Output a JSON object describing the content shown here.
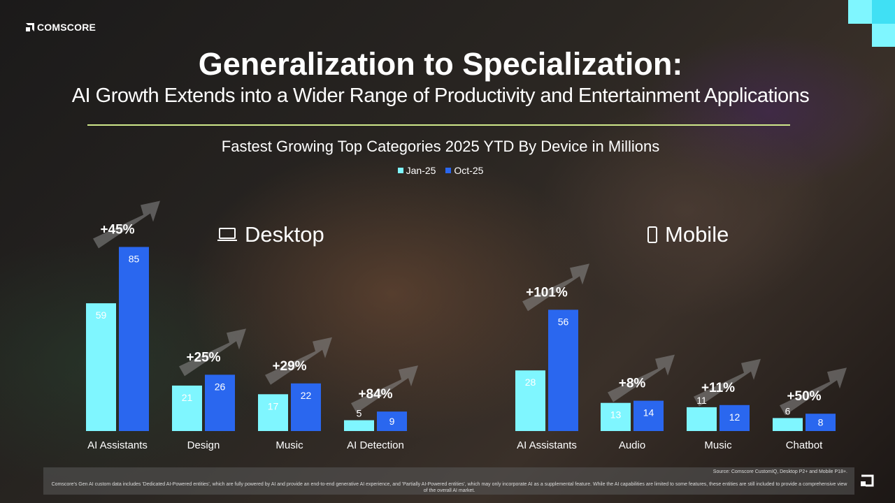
{
  "brand": {
    "name": "COMSCORE",
    "accent_light": "#7ff6ff",
    "accent_mid": "#40e0f4"
  },
  "title": "Generalization to Specialization:",
  "subtitle": "AI Growth Extends into a Wider Range of Productivity and Entertainment Applications",
  "sections": {
    "desktop": "Desktop",
    "mobile": "Mobile"
  },
  "chart_data": {
    "type": "bar",
    "title": "Fastest Growing Top Categories 2025 YTD By Device in Millions",
    "legend": [
      "Jan-25",
      "Oct-25"
    ],
    "series_colors": [
      "#7ff6ff",
      "#2a67ef"
    ],
    "groups": [
      {
        "device": "Desktop",
        "category": "AI Assistants",
        "jan": 59,
        "oct": 85,
        "growth": "+45%"
      },
      {
        "device": "Desktop",
        "category": "Design",
        "jan": 21,
        "oct": 26,
        "growth": "+25%"
      },
      {
        "device": "Desktop",
        "category": "Music",
        "jan": 17,
        "oct": 22,
        "growth": "+29%"
      },
      {
        "device": "Desktop",
        "category": "AI Detection",
        "jan": 5,
        "oct": 9,
        "growth": "+84%"
      },
      {
        "device": "Mobile",
        "category": "AI Assistants",
        "jan": 28,
        "oct": 56,
        "growth": "+101%"
      },
      {
        "device": "Mobile",
        "category": "Audio",
        "jan": 13,
        "oct": 14,
        "growth": "+8%"
      },
      {
        "device": "Mobile",
        "category": "Music",
        "jan": 11,
        "oct": 12,
        "growth": "+11%"
      },
      {
        "device": "Mobile",
        "category": "Chatbot",
        "jan": 6,
        "oct": 8,
        "growth": "+50%"
      }
    ]
  },
  "footer": {
    "source": "Source: Comscore CustomIQ, Desktop P2+ and Mobile P18+.",
    "note": "Comscore's Gen AI custom data includes 'Dedicated AI-Powered entities', which are fully powered by AI and provide an end-to-end generative AI experience, and 'Partially AI-Powered entities', which may only incorporate AI as a supplemental feature. While the AI capabilities are limited to some features, these entities are still included to provide a comprehensive view of the overall AI market."
  }
}
